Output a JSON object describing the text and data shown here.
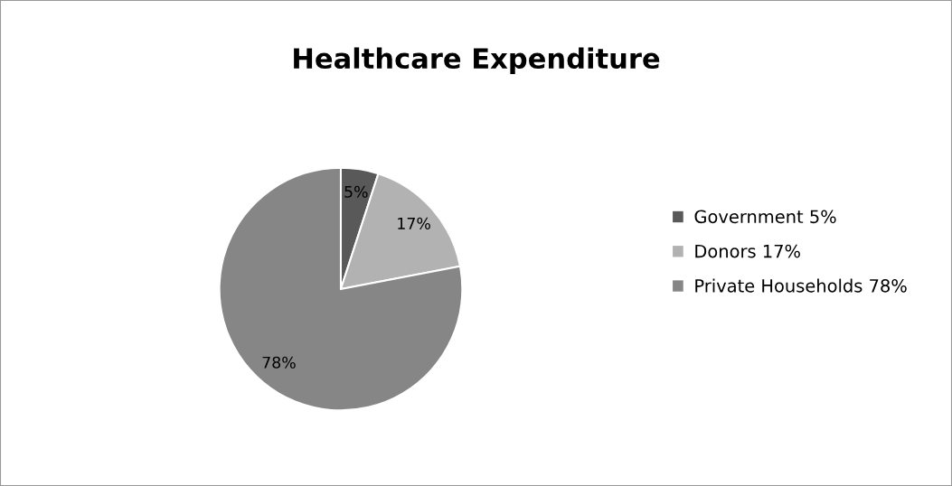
{
  "chart_data": {
    "type": "pie",
    "title": "Healthcare Expenditure",
    "categories": [
      "Government 5%",
      "Donors 17%",
      "Private Households 78%"
    ],
    "values": [
      5,
      17,
      78
    ],
    "value_labels": [
      "5%",
      "17%",
      "78%"
    ],
    "colors": [
      "#595959",
      "#b2b2b2",
      "#868686"
    ],
    "legend": "right"
  }
}
